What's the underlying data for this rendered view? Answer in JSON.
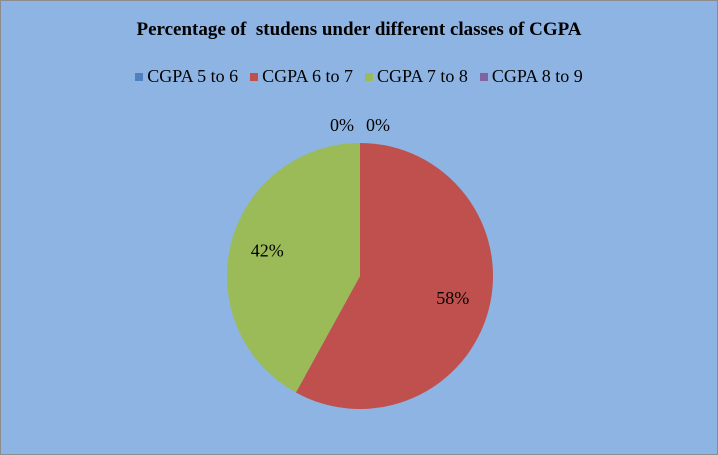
{
  "chart_data": {
    "type": "pie",
    "title": "Percentage of  studens under different classes of CGPA",
    "categories": [
      "CGPA 5 to 6",
      "CGPA 6 to 7",
      "CGPA 7 to 8",
      "CGPA 8 to 9"
    ],
    "values": [
      0,
      58,
      42,
      0
    ],
    "value_labels": [
      "0%",
      "58%",
      "42%",
      "0%"
    ],
    "colors": [
      "#4f81bd",
      "#c0504d",
      "#9bbb59",
      "#8064a2"
    ],
    "legend_position": "top",
    "background_color": "#8db4e2"
  }
}
